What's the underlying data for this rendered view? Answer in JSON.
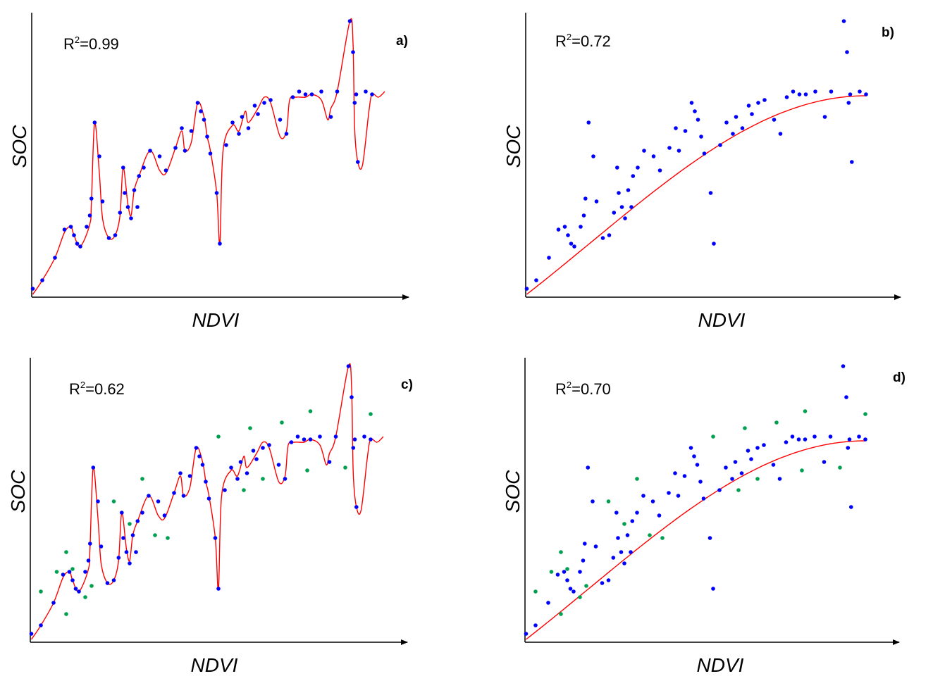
{
  "panels": [
    {
      "id": "a",
      "label": "a)",
      "r2_prefix": "R",
      "r2_sup": "2",
      "r2_value": "=0.99",
      "xlabel": "NDVI",
      "ylabel": "SOC",
      "fit": "interpolating",
      "green_points": false
    },
    {
      "id": "b",
      "label": "b)",
      "r2_prefix": "R",
      "r2_sup": "2",
      "r2_value": "=0.72",
      "xlabel": "NDVI",
      "ylabel": "SOC",
      "fit": "smooth",
      "green_points": false
    },
    {
      "id": "c",
      "label": "c)",
      "r2_prefix": "R",
      "r2_sup": "2",
      "r2_value": "=0.62",
      "xlabel": "NDVI",
      "ylabel": "SOC",
      "fit": "interpolating",
      "green_points": true
    },
    {
      "id": "d",
      "label": "d)",
      "r2_prefix": "R",
      "r2_sup": "2",
      "r2_value": "=0.70",
      "xlabel": "NDVI",
      "ylabel": "SOC",
      "fit": "smooth",
      "green_points": true
    }
  ],
  "colors": {
    "train_points": "#0000ff",
    "test_points": "#00a050",
    "fit_line": "#ff0000",
    "axes": "#000000"
  },
  "scatter": {
    "blue_points": [
      [
        0.05,
        0.03
      ],
      [
        0.08,
        0.06
      ],
      [
        0.12,
        0.14
      ],
      [
        0.15,
        0.24
      ],
      [
        0.17,
        0.25
      ],
      [
        0.18,
        0.22
      ],
      [
        0.19,
        0.19
      ],
      [
        0.2,
        0.18
      ],
      [
        0.22,
        0.25
      ],
      [
        0.23,
        0.29
      ],
      [
        0.235,
        0.35
      ],
      [
        0.245,
        0.62
      ],
      [
        0.26,
        0.5
      ],
      [
        0.27,
        0.34
      ],
      [
        0.29,
        0.21
      ],
      [
        0.31,
        0.22
      ],
      [
        0.325,
        0.3
      ],
      [
        0.335,
        0.46
      ],
      [
        0.34,
        0.37
      ],
      [
        0.35,
        0.32
      ],
      [
        0.36,
        0.28
      ],
      [
        0.37,
        0.38
      ],
      [
        0.38,
        0.32
      ],
      [
        0.385,
        0.43
      ],
      [
        0.4,
        0.46
      ],
      [
        0.42,
        0.52
      ],
      [
        0.45,
        0.5
      ],
      [
        0.47,
        0.45
      ],
      [
        0.5,
        0.53
      ],
      [
        0.52,
        0.6
      ],
      [
        0.53,
        0.52
      ],
      [
        0.55,
        0.59
      ],
      [
        0.57,
        0.69
      ],
      [
        0.58,
        0.66
      ],
      [
        0.59,
        0.63
      ],
      [
        0.6,
        0.57
      ],
      [
        0.61,
        0.51
      ],
      [
        0.63,
        0.37
      ],
      [
        0.64,
        0.19
      ],
      [
        0.66,
        0.54
      ],
      [
        0.68,
        0.62
      ],
      [
        0.7,
        0.58
      ],
      [
        0.71,
        0.64
      ],
      [
        0.73,
        0.6
      ],
      [
        0.75,
        0.68
      ],
      [
        0.76,
        0.65
      ],
      [
        0.78,
        0.69
      ],
      [
        0.8,
        0.7
      ],
      [
        0.83,
        0.63
      ],
      [
        0.85,
        0.58
      ],
      [
        0.87,
        0.71
      ],
      [
        0.89,
        0.73
      ],
      [
        0.91,
        0.72
      ],
      [
        0.93,
        0.72
      ],
      [
        0.96,
        0.73
      ],
      [
        0.99,
        0.64
      ],
      [
        1.01,
        0.73
      ],
      [
        1.05,
        0.98
      ],
      [
        1.06,
        0.87
      ],
      [
        1.065,
        0.69
      ],
      [
        1.07,
        0.72
      ],
      [
        1.075,
        0.48
      ],
      [
        1.1,
        0.73
      ],
      [
        1.12,
        0.72
      ]
    ],
    "green_points": [
      [
        0.08,
        0.18
      ],
      [
        0.13,
        0.25
      ],
      [
        0.16,
        0.1
      ],
      [
        0.16,
        0.32
      ],
      [
        0.18,
        0.26
      ],
      [
        0.22,
        0.16
      ],
      [
        0.24,
        0.2
      ],
      [
        0.31,
        0.5
      ],
      [
        0.36,
        0.42
      ],
      [
        0.4,
        0.58
      ],
      [
        0.44,
        0.38
      ],
      [
        0.48,
        0.37
      ],
      [
        0.64,
        0.73
      ],
      [
        0.72,
        0.54
      ],
      [
        0.74,
        0.76
      ],
      [
        0.78,
        0.58
      ],
      [
        0.84,
        0.78
      ],
      [
        0.92,
        0.61
      ],
      [
        0.93,
        0.82
      ],
      [
        1.04,
        0.62
      ],
      [
        1.12,
        0.81
      ]
    ]
  },
  "interp_curve": [
    [
      0.05,
      0.01
    ],
    [
      0.08,
      0.06
    ],
    [
      0.12,
      0.14
    ],
    [
      0.15,
      0.23
    ],
    [
      0.17,
      0.25
    ],
    [
      0.18,
      0.22
    ],
    [
      0.2,
      0.18
    ],
    [
      0.23,
      0.26
    ],
    [
      0.235,
      0.34
    ],
    [
      0.245,
      0.62
    ],
    [
      0.26,
      0.44
    ],
    [
      0.27,
      0.28
    ],
    [
      0.29,
      0.21
    ],
    [
      0.31,
      0.22
    ],
    [
      0.325,
      0.29
    ],
    [
      0.335,
      0.46
    ],
    [
      0.35,
      0.33
    ],
    [
      0.36,
      0.29
    ],
    [
      0.37,
      0.38
    ],
    [
      0.385,
      0.43
    ],
    [
      0.42,
      0.52
    ],
    [
      0.45,
      0.45
    ],
    [
      0.47,
      0.44
    ],
    [
      0.5,
      0.53
    ],
    [
      0.52,
      0.59
    ],
    [
      0.53,
      0.52
    ],
    [
      0.55,
      0.55
    ],
    [
      0.57,
      0.69
    ],
    [
      0.59,
      0.64
    ],
    [
      0.6,
      0.57
    ],
    [
      0.61,
      0.52
    ],
    [
      0.63,
      0.37
    ],
    [
      0.64,
      0.19
    ],
    [
      0.65,
      0.52
    ],
    [
      0.68,
      0.61
    ],
    [
      0.7,
      0.59
    ],
    [
      0.72,
      0.66
    ],
    [
      0.73,
      0.62
    ],
    [
      0.76,
      0.67
    ],
    [
      0.78,
      0.71
    ],
    [
      0.8,
      0.69
    ],
    [
      0.83,
      0.57
    ],
    [
      0.85,
      0.59
    ],
    [
      0.86,
      0.7
    ],
    [
      0.88,
      0.71
    ],
    [
      0.91,
      0.71
    ],
    [
      0.93,
      0.72
    ],
    [
      0.96,
      0.7
    ],
    [
      0.98,
      0.63
    ],
    [
      0.99,
      0.67
    ],
    [
      1.01,
      0.73
    ],
    [
      1.05,
      0.98
    ],
    [
      1.06,
      0.9
    ],
    [
      1.065,
      0.6
    ],
    [
      1.075,
      0.48
    ],
    [
      1.09,
      0.47
    ],
    [
      1.11,
      0.66
    ],
    [
      1.12,
      0.72
    ],
    [
      1.14,
      0.71
    ],
    [
      1.16,
      0.73
    ]
  ],
  "smooth_fit": {
    "ymin": 0.01,
    "ymax": 0.715,
    "x0": 0.05,
    "x1": 1.12,
    "shape": 0.85
  }
}
